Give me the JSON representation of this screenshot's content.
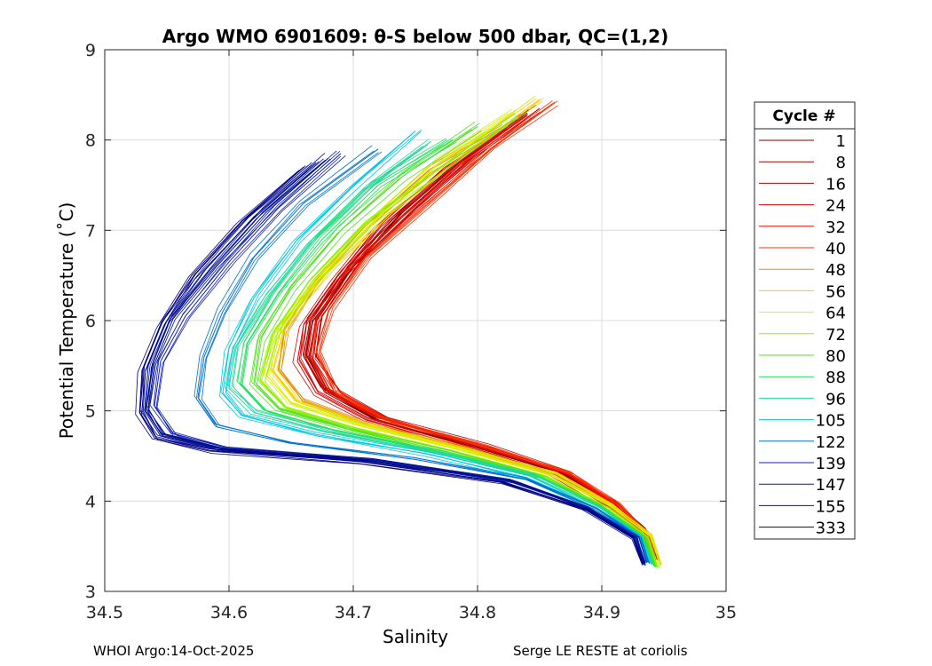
{
  "chart_data": {
    "type": "line",
    "title": "Argo WMO 6901609: θ-S below 500 dbar,  QC=(1,2)",
    "xlabel": "Salinity",
    "ylabel": "Potential Temperature (˚C)",
    "xlim": [
      34.5,
      35
    ],
    "ylim": [
      3,
      9
    ],
    "xticks": [
      34.5,
      34.6,
      34.7,
      34.8,
      34.9,
      35
    ],
    "xtick_labels": [
      "34.5",
      "34.6",
      "34.7",
      "34.8",
      "34.9",
      "35"
    ],
    "yticks": [
      3,
      4,
      5,
      6,
      7,
      8,
      9
    ],
    "ytick_labels": [
      "3",
      "4",
      "5",
      "6",
      "7",
      "8",
      "9"
    ],
    "grid": true,
    "legend_title": "Cycle #",
    "legend_position": "right-outside",
    "series": [
      {
        "name": "1",
        "color": "#7a0000",
        "x": [
          34.84,
          34.79,
          34.74,
          34.7,
          34.67,
          34.665,
          34.68,
          34.72,
          34.8,
          34.87,
          34.91,
          34.935,
          34.94
        ],
        "y": [
          8.3,
          7.8,
          7.2,
          6.6,
          6.0,
          5.6,
          5.2,
          4.9,
          4.6,
          4.3,
          4.0,
          3.7,
          3.4
        ]
      },
      {
        "name": "8",
        "color": "#a00000",
        "x": [
          34.83,
          34.78,
          34.73,
          34.69,
          34.665,
          34.66,
          34.675,
          34.715,
          34.79,
          34.86,
          34.905,
          34.93,
          34.945
        ],
        "y": [
          8.2,
          7.7,
          7.1,
          6.5,
          6.0,
          5.6,
          5.25,
          4.95,
          4.65,
          4.35,
          4.0,
          3.7,
          3.35
        ]
      },
      {
        "name": "16",
        "color": "#c00000",
        "x": [
          34.85,
          34.8,
          34.75,
          34.705,
          34.675,
          34.67,
          34.69,
          34.73,
          34.81,
          34.875,
          34.912,
          34.935,
          34.942
        ],
        "y": [
          8.35,
          7.85,
          7.25,
          6.65,
          6.05,
          5.6,
          5.2,
          4.9,
          4.6,
          4.3,
          3.95,
          3.65,
          3.4
        ]
      },
      {
        "name": "24",
        "color": "#d80000",
        "x": [
          34.82,
          34.77,
          34.72,
          34.685,
          34.66,
          34.655,
          34.67,
          34.71,
          34.79,
          34.86,
          34.9,
          34.93,
          34.94
        ],
        "y": [
          8.1,
          7.65,
          7.05,
          6.45,
          5.95,
          5.55,
          5.2,
          4.9,
          4.6,
          4.3,
          3.98,
          3.68,
          3.38
        ]
      },
      {
        "name": "32",
        "color": "#ee1000",
        "x": [
          34.84,
          34.79,
          34.74,
          34.695,
          34.67,
          34.665,
          34.68,
          34.72,
          34.8,
          34.87,
          34.91,
          34.935,
          34.945
        ],
        "y": [
          8.25,
          7.75,
          7.15,
          6.55,
          6.0,
          5.6,
          5.22,
          4.92,
          4.62,
          4.32,
          3.98,
          3.66,
          3.36
        ]
      },
      {
        "name": "40",
        "color": "#ff3000",
        "x": [
          34.86,
          34.81,
          34.76,
          34.71,
          34.68,
          34.67,
          34.685,
          34.725,
          34.805,
          34.875,
          34.913,
          34.937,
          34.946
        ],
        "y": [
          8.4,
          7.9,
          7.3,
          6.7,
          6.1,
          5.65,
          5.2,
          4.9,
          4.6,
          4.3,
          3.96,
          3.64,
          3.34
        ]
      },
      {
        "name": "48",
        "color": "#e09000",
        "x": [
          34.82,
          34.76,
          34.71,
          34.67,
          34.645,
          34.64,
          34.66,
          34.71,
          34.79,
          34.86,
          34.905,
          34.932,
          34.94
        ],
        "y": [
          8.15,
          7.65,
          7.05,
          6.45,
          5.9,
          5.45,
          5.1,
          4.85,
          4.58,
          4.3,
          3.96,
          3.65,
          3.32
        ]
      },
      {
        "name": "56",
        "color": "#f0d000",
        "x": [
          34.85,
          34.79,
          34.73,
          34.68,
          34.645,
          34.635,
          34.655,
          34.71,
          34.79,
          34.865,
          34.91,
          34.94,
          34.948
        ],
        "y": [
          8.45,
          7.85,
          7.2,
          6.55,
          5.95,
          5.45,
          5.1,
          4.85,
          4.58,
          4.3,
          3.95,
          3.62,
          3.3
        ]
      },
      {
        "name": "64",
        "color": "#d8f000",
        "x": [
          34.83,
          34.77,
          34.72,
          34.675,
          34.64,
          34.63,
          34.65,
          34.705,
          34.785,
          34.86,
          34.908,
          34.94,
          34.947
        ],
        "y": [
          8.3,
          7.75,
          7.15,
          6.5,
          5.9,
          5.4,
          5.08,
          4.84,
          4.57,
          4.29,
          3.94,
          3.6,
          3.28
        ]
      },
      {
        "name": "72",
        "color": "#90f000",
        "x": [
          34.83,
          34.77,
          34.71,
          34.665,
          34.635,
          34.625,
          34.645,
          34.7,
          34.78,
          34.855,
          34.905,
          34.937,
          34.945
        ],
        "y": [
          8.3,
          7.7,
          7.1,
          6.45,
          5.85,
          5.35,
          5.05,
          4.82,
          4.56,
          4.28,
          3.93,
          3.6,
          3.27
        ]
      },
      {
        "name": "80",
        "color": "#50e020",
        "x": [
          34.8,
          34.74,
          34.69,
          34.65,
          34.625,
          34.62,
          34.64,
          34.695,
          34.775,
          34.85,
          34.9,
          34.935,
          34.943
        ],
        "y": [
          8.15,
          7.6,
          7.0,
          6.35,
          5.8,
          5.3,
          5.02,
          4.8,
          4.55,
          4.28,
          3.94,
          3.6,
          3.28
        ]
      },
      {
        "name": "88",
        "color": "#20e060",
        "x": [
          34.78,
          34.72,
          34.675,
          34.64,
          34.615,
          34.61,
          34.63,
          34.685,
          34.77,
          34.85,
          34.9,
          34.933,
          34.942
        ],
        "y": [
          8.0,
          7.5,
          6.9,
          6.3,
          5.75,
          5.3,
          5.0,
          4.78,
          4.54,
          4.27,
          3.93,
          3.6,
          3.28
        ]
      },
      {
        "name": "96",
        "color": "#20d8a0",
        "x": [
          34.76,
          34.71,
          34.665,
          34.63,
          34.605,
          34.6,
          34.62,
          34.68,
          34.765,
          34.845,
          34.898,
          34.932,
          34.94
        ],
        "y": [
          7.95,
          7.45,
          6.85,
          6.25,
          5.7,
          5.25,
          4.98,
          4.76,
          4.53,
          4.27,
          3.93,
          3.6,
          3.3
        ]
      },
      {
        "name": "105",
        "color": "#00c8e0",
        "x": [
          34.75,
          34.7,
          34.655,
          34.62,
          34.6,
          34.595,
          34.61,
          34.67,
          34.76,
          34.84,
          34.895,
          34.93,
          34.938
        ],
        "y": [
          8.1,
          7.5,
          6.9,
          6.25,
          5.7,
          5.2,
          4.95,
          4.74,
          4.52,
          4.26,
          3.93,
          3.62,
          3.32
        ]
      },
      {
        "name": "122",
        "color": "#0070d0",
        "x": [
          34.72,
          34.66,
          34.62,
          34.595,
          34.58,
          34.575,
          34.59,
          34.65,
          34.75,
          34.84,
          34.895,
          34.93,
          34.937
        ],
        "y": [
          7.9,
          7.3,
          6.7,
          6.1,
          5.6,
          5.15,
          4.85,
          4.65,
          4.48,
          4.24,
          3.92,
          3.6,
          3.32
        ]
      },
      {
        "name": "139",
        "color": "#1020b0",
        "x": [
          34.69,
          34.64,
          34.6,
          34.565,
          34.545,
          34.54,
          34.555,
          34.6,
          34.72,
          34.83,
          34.89,
          34.928,
          34.935
        ],
        "y": [
          7.85,
          7.25,
          6.65,
          6.05,
          5.55,
          5.05,
          4.75,
          4.58,
          4.45,
          4.22,
          3.92,
          3.6,
          3.32
        ]
      },
      {
        "name": "147",
        "color": "#0818a0",
        "x": [
          34.67,
          34.62,
          34.58,
          34.55,
          34.535,
          34.532,
          34.545,
          34.59,
          34.71,
          34.825,
          34.888,
          34.926,
          34.934
        ],
        "y": [
          7.75,
          7.15,
          6.55,
          6.0,
          5.5,
          5.0,
          4.72,
          4.57,
          4.45,
          4.22,
          3.92,
          3.6,
          3.3
        ]
      },
      {
        "name": "155",
        "color": "#001090",
        "x": [
          34.68,
          34.63,
          34.59,
          34.555,
          34.54,
          34.535,
          34.548,
          34.595,
          34.715,
          34.828,
          34.889,
          34.927,
          34.935
        ],
        "y": [
          7.8,
          7.2,
          6.6,
          6.02,
          5.52,
          5.02,
          4.74,
          4.58,
          4.46,
          4.23,
          3.92,
          3.6,
          3.31
        ]
      },
      {
        "name": "333",
        "color": "#000080",
        "x": [
          34.66,
          34.61,
          34.57,
          34.545,
          34.53,
          34.528,
          34.54,
          34.585,
          34.705,
          34.82,
          34.886,
          34.925,
          34.933
        ],
        "y": [
          7.7,
          7.1,
          6.5,
          5.95,
          5.45,
          4.98,
          4.7,
          4.56,
          4.44,
          4.21,
          3.91,
          3.6,
          3.3
        ]
      }
    ]
  },
  "footer": {
    "left": "WHOI Argo:14-Oct-2025",
    "right": "Serge LE RESTE at coriolis"
  }
}
